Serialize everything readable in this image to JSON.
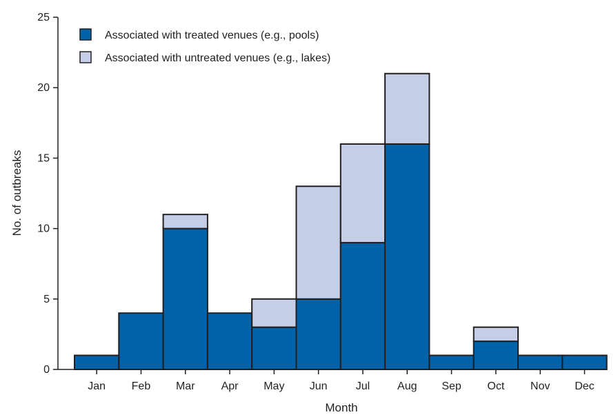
{
  "chart_data": {
    "type": "bar",
    "stacked": true,
    "xlabel": "Month",
    "ylabel": "No. of outbreaks",
    "ylim": [
      0,
      25
    ],
    "yticks": [
      0,
      5,
      10,
      15,
      20,
      25
    ],
    "grid": false,
    "legend_position": "top-left",
    "categories": [
      "Jan",
      "Feb",
      "Mar",
      "Apr",
      "May",
      "Jun",
      "Jul",
      "Aug",
      "Sep",
      "Oct",
      "Nov",
      "Dec"
    ],
    "series": [
      {
        "name": "Associated with treated venues (e.g., pools)",
        "color": "#0062a8",
        "values": [
          1,
          4,
          10,
          4,
          3,
          5,
          9,
          16,
          1,
          2,
          1,
          1
        ]
      },
      {
        "name": "Associated with untreated venues (e.g., lakes)",
        "color": "#c5cee6",
        "values": [
          0,
          0,
          1,
          0,
          2,
          8,
          7,
          5,
          0,
          1,
          0,
          0
        ]
      }
    ]
  }
}
